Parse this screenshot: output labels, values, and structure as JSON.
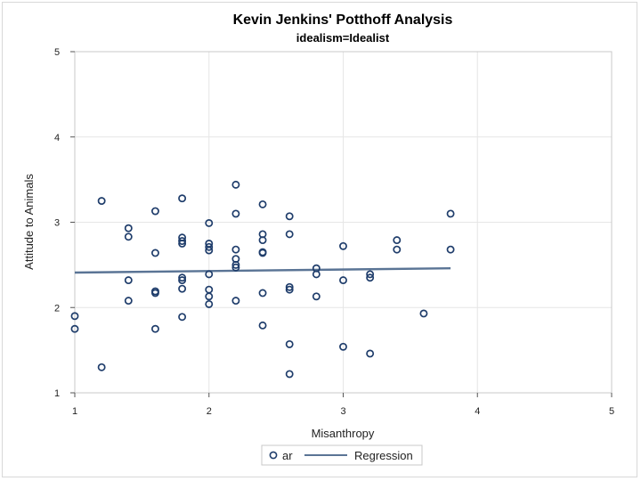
{
  "chart_data": {
    "type": "scatter",
    "title": "Kevin Jenkins' Potthoff Analysis",
    "subtitle": "idealism=Idealist",
    "xlabel": "Misanthropy",
    "ylabel": "Attitude to Animals",
    "xlim": [
      1,
      5
    ],
    "ylim": [
      1,
      5
    ],
    "xticks": [
      1,
      2,
      3,
      4,
      5
    ],
    "yticks": [
      1,
      2,
      3,
      4,
      5
    ],
    "grid": true,
    "legend_position": "bottom",
    "series": [
      {
        "name": "ar",
        "kind": "scatter",
        "color": "#1f3d6b",
        "points": [
          [
            1.0,
            1.9
          ],
          [
            1.0,
            1.75
          ],
          [
            1.2,
            3.25
          ],
          [
            1.2,
            1.3
          ],
          [
            1.4,
            2.93
          ],
          [
            1.4,
            2.83
          ],
          [
            1.4,
            2.32
          ],
          [
            1.4,
            2.08
          ],
          [
            1.6,
            3.13
          ],
          [
            1.6,
            2.64
          ],
          [
            1.6,
            2.19
          ],
          [
            1.6,
            2.17
          ],
          [
            1.6,
            1.75
          ],
          [
            1.8,
            3.28
          ],
          [
            1.8,
            2.82
          ],
          [
            1.8,
            2.78
          ],
          [
            1.8,
            2.75
          ],
          [
            1.8,
            2.35
          ],
          [
            1.8,
            2.32
          ],
          [
            1.8,
            2.22
          ],
          [
            1.8,
            1.89
          ],
          [
            2.0,
            2.99
          ],
          [
            2.0,
            2.75
          ],
          [
            2.0,
            2.71
          ],
          [
            2.0,
            2.67
          ],
          [
            2.0,
            2.39
          ],
          [
            2.0,
            2.21
          ],
          [
            2.0,
            2.13
          ],
          [
            2.0,
            2.04
          ],
          [
            2.2,
            3.44
          ],
          [
            2.2,
            3.1
          ],
          [
            2.2,
            2.68
          ],
          [
            2.2,
            2.57
          ],
          [
            2.2,
            2.5
          ],
          [
            2.2,
            2.47
          ],
          [
            2.2,
            2.08
          ],
          [
            2.4,
            3.21
          ],
          [
            2.4,
            2.86
          ],
          [
            2.4,
            2.79
          ],
          [
            2.4,
            2.65
          ],
          [
            2.4,
            2.64
          ],
          [
            2.4,
            2.17
          ],
          [
            2.4,
            1.79
          ],
          [
            2.6,
            3.07
          ],
          [
            2.6,
            2.86
          ],
          [
            2.6,
            2.24
          ],
          [
            2.6,
            2.21
          ],
          [
            2.6,
            1.57
          ],
          [
            2.6,
            1.22
          ],
          [
            2.8,
            2.46
          ],
          [
            2.8,
            2.39
          ],
          [
            2.8,
            2.13
          ],
          [
            3.0,
            2.72
          ],
          [
            3.0,
            2.32
          ],
          [
            3.0,
            1.54
          ],
          [
            3.2,
            2.39
          ],
          [
            3.2,
            2.35
          ],
          [
            3.2,
            1.46
          ],
          [
            3.4,
            2.79
          ],
          [
            3.4,
            2.68
          ],
          [
            3.6,
            1.93
          ],
          [
            3.8,
            3.1
          ],
          [
            3.8,
            2.68
          ]
        ]
      },
      {
        "name": "Regression",
        "kind": "line",
        "color": "#5a7495",
        "points": [
          [
            1.0,
            2.41
          ],
          [
            3.8,
            2.46
          ]
        ]
      }
    ]
  }
}
